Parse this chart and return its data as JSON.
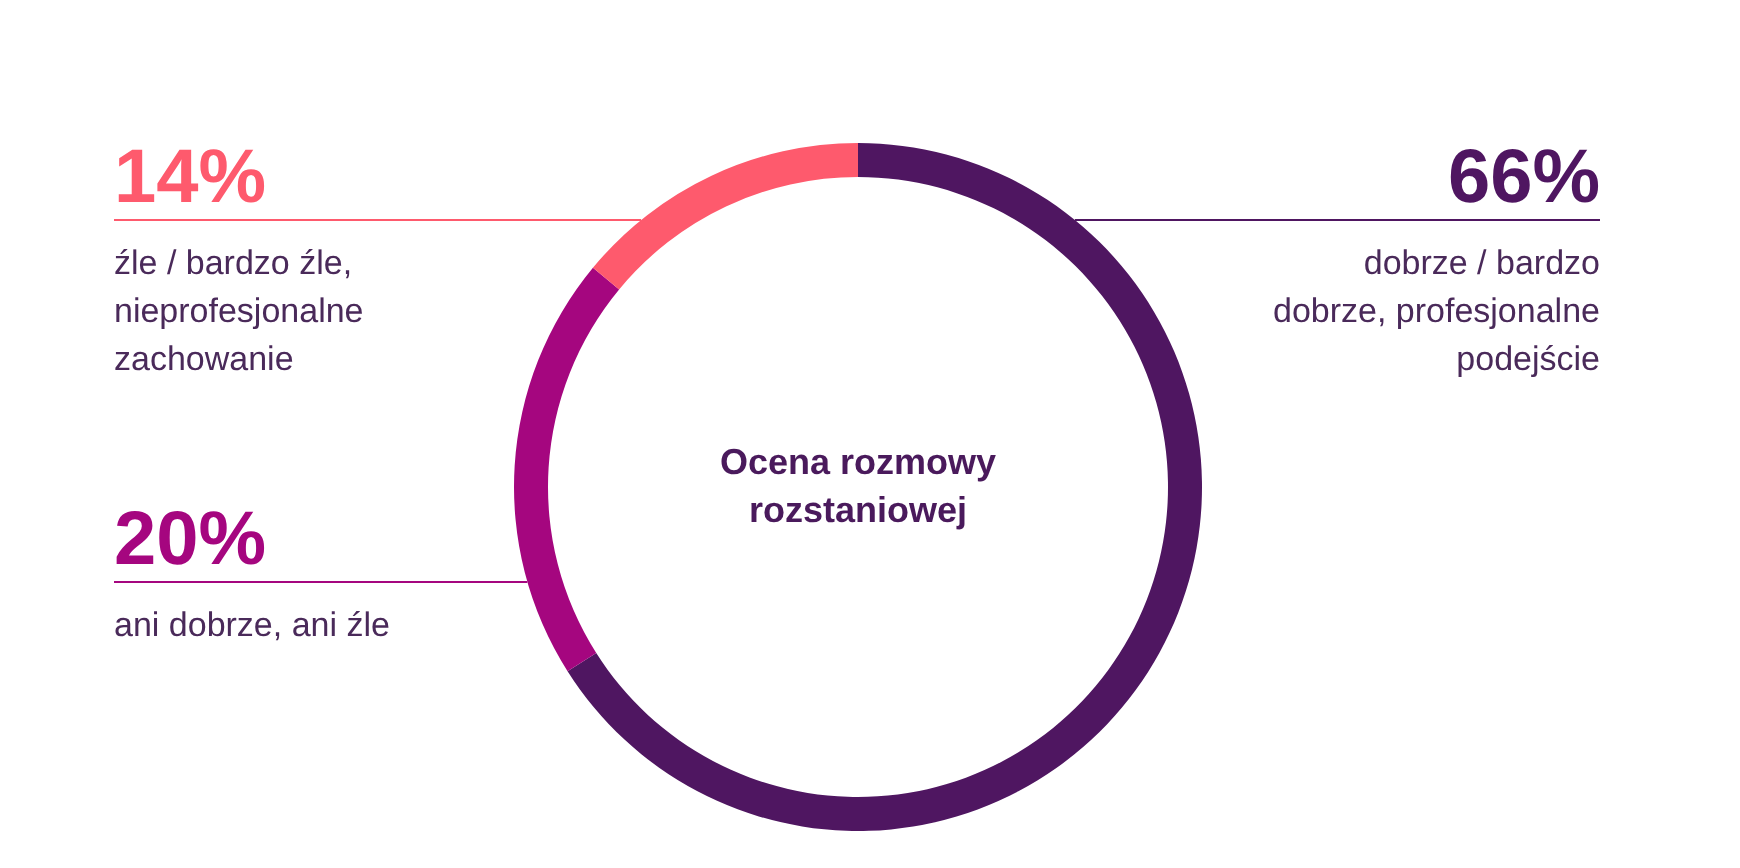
{
  "chart_data": {
    "type": "donut",
    "title": "Ocena rozmowy rozstaniowej",
    "categories": [
      "dobrze / bardzo dobrze, profesjonalne podejście",
      "ani dobrze, ani źle",
      "źle / bardzo źle, nieprofesjonalne zachowanie"
    ],
    "values": [
      66,
      20,
      14
    ],
    "colors": [
      "#4f1661",
      "#a5067f",
      "#fe5a6d"
    ],
    "value_labels": [
      "66%",
      "20%",
      "14%"
    ]
  }
}
